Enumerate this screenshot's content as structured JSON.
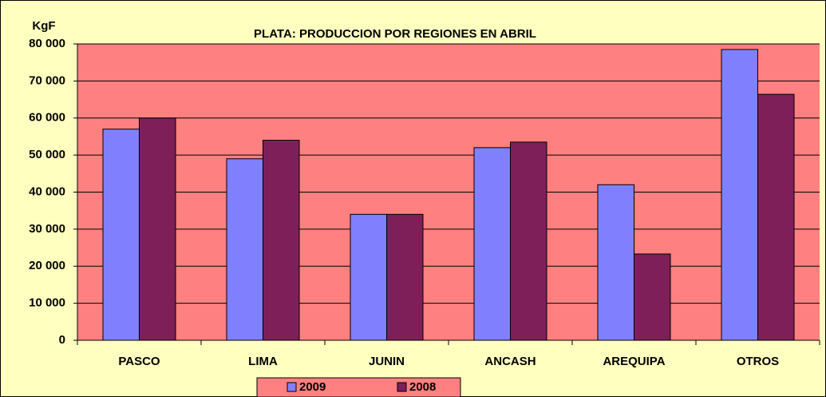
{
  "chart_data": {
    "type": "bar",
    "title": "PLATA: PRODUCCION POR REGIONES EN ABRIL",
    "y_label": "KgF",
    "categories": [
      "PASCO",
      "LIMA",
      "JUNIN",
      "ANCASH",
      "AREQUIPA",
      "OTROS"
    ],
    "series": [
      {
        "name": "2009",
        "color": "#8080ff",
        "values": [
          57000,
          49000,
          34000,
          52000,
          42000,
          78500
        ]
      },
      {
        "name": "2008",
        "color": "#7f1f5a",
        "values": [
          60000,
          54000,
          34000,
          53500,
          23300,
          66400
        ]
      }
    ],
    "ylim": [
      0,
      80000
    ],
    "yticks": [
      0,
      {
        "value": 10000,
        "label": "10 000"
      },
      {
        "value": 20000,
        "label": "20 000"
      },
      {
        "value": 30000,
        "label": "30 000"
      },
      {
        "value": 40000,
        "label": "40 000"
      },
      {
        "value": 50000,
        "label": "50 000"
      },
      {
        "value": 60000,
        "label": "60 000"
      },
      {
        "value": 70000,
        "label": "70 000"
      },
      {
        "value": 80000,
        "label": "80 000"
      }
    ],
    "grid": true,
    "legend": "bottom"
  }
}
